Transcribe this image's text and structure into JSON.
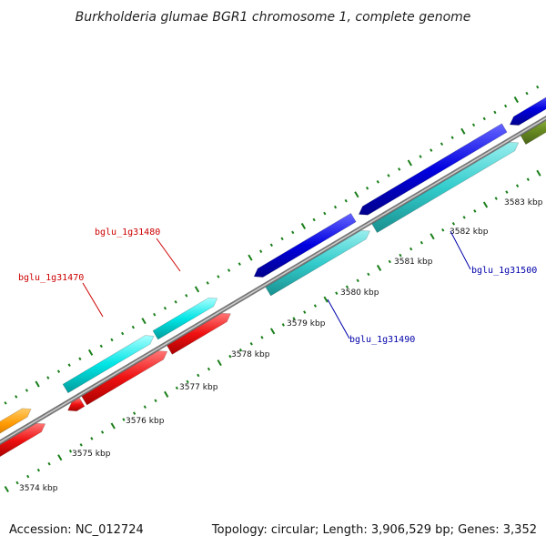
{
  "title": "Burkholderia glumae BGR1 chromosome 1, complete genome",
  "footer": {
    "accession": "Accession: NC_012724",
    "summary": "Topology: circular; Length: 3,906,529 bp; Genes: 3,352"
  },
  "colors": {
    "backbone": "#8c8c8c",
    "tick": "#1a7f1a",
    "forward_cds": "#00e5e5",
    "reverse_cds": "#ee1111",
    "blue_cds": "#0000e0",
    "teal_cds": "#33cccc",
    "orange_cds": "#ff9900",
    "olive_cds": "#6b8e23",
    "label_red": "#cc0000",
    "label_blue": "#0000aa"
  },
  "axis_labels": [
    {
      "kbp": 3574,
      "text": "3574 kbp"
    },
    {
      "kbp": 3575,
      "text": "3575 kbp"
    },
    {
      "kbp": 3576,
      "text": "3576 kbp"
    },
    {
      "kbp": 3577,
      "text": "3577 kbp"
    },
    {
      "kbp": 3578,
      "text": "3578 kbp"
    },
    {
      "kbp": 3579,
      "text": "3579 kbp"
    },
    {
      "kbp": 3580,
      "text": "3580 kbp"
    },
    {
      "kbp": 3581,
      "text": "3581 kbp"
    },
    {
      "kbp": 3582,
      "text": "3582 kbp"
    },
    {
      "kbp": 3583,
      "text": "3583 kbp"
    }
  ],
  "gene_labels": [
    {
      "id": "bglu_1g31480",
      "text": "bglu_1g31480",
      "color": "#cc0000"
    },
    {
      "id": "bglu_1g31470",
      "text": "bglu_1g31470",
      "color": "#cc0000"
    },
    {
      "id": "bglu_1g31490",
      "text": "bglu_1g31490",
      "color": "#0000aa"
    },
    {
      "id": "bglu_1g31500",
      "text": "bglu_1g31500",
      "color": "#0000aa"
    }
  ]
}
